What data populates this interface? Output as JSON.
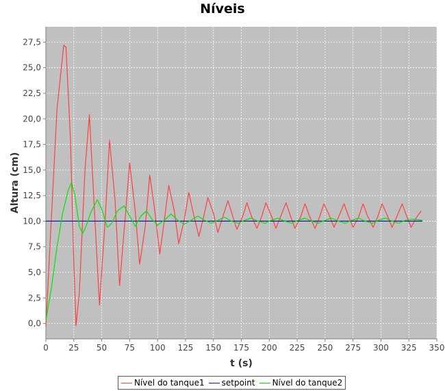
{
  "chart_data": {
    "type": "line",
    "title": "Níveis",
    "xlabel": "t (s)",
    "ylabel": "Altura (cm)",
    "xlim": [
      0,
      350
    ],
    "ylim": [
      -1.5,
      29
    ],
    "grid": true,
    "legend_position": "bottom",
    "x_ticks": [
      0,
      25,
      50,
      75,
      100,
      125,
      150,
      175,
      200,
      225,
      250,
      275,
      300,
      325,
      350
    ],
    "x_tick_labels": [
      "0",
      "25",
      "50",
      "75",
      "100",
      "125",
      "150",
      "175",
      "200",
      "225",
      "250",
      "275",
      "300",
      "325",
      "350"
    ],
    "y_ticks": [
      0,
      2.5,
      5,
      7.5,
      10,
      12.5,
      15,
      17.5,
      20,
      22.5,
      25,
      27.5
    ],
    "y_tick_labels": [
      "0,0",
      "2,5",
      "5,0",
      "7,5",
      "10,0",
      "12,5",
      "15,0",
      "17,5",
      "20,0",
      "22,5",
      "25,0",
      "27,5"
    ],
    "colors": {
      "plot_bg": "#c0c0c0",
      "grid": "#ffffff"
    },
    "series": [
      {
        "name": "Nível do tanque1",
        "color": "#ff4040",
        "x": [
          0,
          5,
          10,
          16,
          18,
          22,
          25,
          27,
          30,
          35,
          39,
          43,
          48,
          53,
          57,
          62,
          66,
          70,
          75,
          80,
          84,
          89,
          93,
          97,
          102,
          106,
          110,
          115,
          119,
          124,
          128,
          132,
          137,
          141,
          145,
          150,
          154,
          158,
          163,
          167,
          171,
          176,
          180,
          184,
          189,
          193,
          197,
          202,
          206,
          210,
          215,
          219,
          223,
          228,
          232,
          236,
          241,
          245,
          249,
          254,
          258,
          262,
          267,
          271,
          275,
          280,
          284,
          288,
          293,
          297,
          301,
          306,
          310,
          314,
          319,
          323,
          327,
          332,
          336
        ],
        "values": [
          -0.3,
          10.5,
          21.0,
          27.2,
          27.0,
          18.0,
          6.0,
          -0.2,
          3.0,
          15.0,
          20.4,
          12.0,
          1.8,
          10.0,
          17.9,
          12.0,
          3.7,
          9.0,
          15.7,
          11.0,
          5.8,
          9.5,
          14.5,
          11.5,
          6.8,
          10.0,
          13.5,
          11.0,
          7.8,
          10.2,
          12.8,
          10.8,
          8.5,
          10.3,
          12.3,
          10.8,
          8.9,
          10.3,
          12.0,
          10.6,
          9.2,
          10.4,
          11.8,
          10.5,
          9.3,
          10.4,
          11.8,
          10.5,
          9.3,
          10.4,
          11.8,
          10.5,
          9.3,
          10.4,
          11.7,
          10.5,
          9.3,
          10.4,
          11.7,
          10.5,
          9.4,
          10.4,
          11.7,
          10.5,
          9.4,
          10.4,
          11.7,
          10.5,
          9.4,
          10.4,
          11.7,
          10.5,
          9.4,
          10.4,
          11.7,
          10.5,
          9.4,
          10.4,
          11.0
        ]
      },
      {
        "name": "setpoint",
        "color": "#1a1aa8",
        "x": [
          0,
          337
        ],
        "values": [
          10.0,
          10.0
        ]
      },
      {
        "name": "Nível do tanque2",
        "color": "#00e600",
        "x": [
          0,
          5,
          10,
          15,
          20,
          23,
          26,
          30,
          33,
          36,
          40,
          46,
          50,
          55,
          59,
          64,
          70,
          75,
          80,
          85,
          90,
          95,
          100,
          106,
          112,
          118,
          124,
          130,
          136,
          142,
          148,
          154,
          160,
          166,
          172,
          178,
          184,
          190,
          196,
          202,
          208,
          214,
          220,
          226,
          232,
          238,
          244,
          250,
          256,
          262,
          268,
          274,
          280,
          286,
          292,
          298,
          304,
          310,
          316,
          322,
          328,
          337
        ],
        "values": [
          0.3,
          3.5,
          7.5,
          10.8,
          13.0,
          13.8,
          12.5,
          9.5,
          8.8,
          9.5,
          10.8,
          12.1,
          11.2,
          9.4,
          9.8,
          11.0,
          11.5,
          10.5,
          9.5,
          10.5,
          11.0,
          10.2,
          9.6,
          10.1,
          10.7,
          10.1,
          9.7,
          10.1,
          10.5,
          10.1,
          9.8,
          10.1,
          10.4,
          10.0,
          9.8,
          10.1,
          10.3,
          10.0,
          9.8,
          10.1,
          10.3,
          10.0,
          9.8,
          10.1,
          10.3,
          10.0,
          9.8,
          10.1,
          10.3,
          10.0,
          9.8,
          10.1,
          10.3,
          10.0,
          9.8,
          10.1,
          10.3,
          10.0,
          9.8,
          10.1,
          10.2,
          10.1
        ]
      }
    ]
  }
}
